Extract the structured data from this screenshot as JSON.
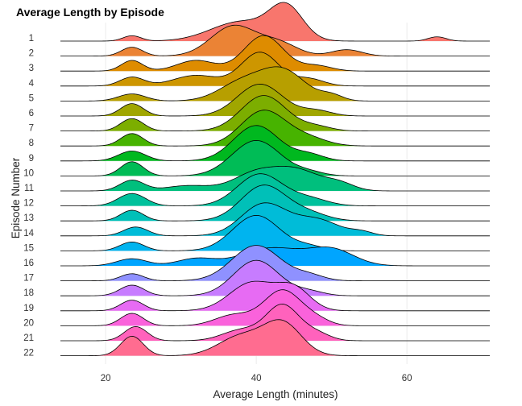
{
  "chart_data": {
    "type": "ridgeline",
    "title": "Average Length by Episode",
    "xlabel": "Average Length (minutes)",
    "ylabel": "Episode Number",
    "xlim": [
      14,
      71
    ],
    "xticks": [
      20,
      40,
      60
    ],
    "grid": true,
    "series": [
      {
        "name": "1",
        "color": "#F8766D",
        "peaks": [
          [
            23.5,
            1.2,
            0.15
          ],
          [
            38,
            4,
            0.55
          ],
          [
            44,
            2.2,
            0.9
          ],
          [
            64,
            1.2,
            0.12
          ]
        ]
      },
      {
        "name": "2",
        "color": "#EB8335",
        "peaks": [
          [
            23.5,
            1.4,
            0.25
          ],
          [
            37,
            3,
            0.85
          ],
          [
            43,
            2.5,
            0.35
          ],
          [
            52,
            2,
            0.18
          ]
        ]
      },
      {
        "name": "3",
        "color": "#DE8C00",
        "peaks": [
          [
            23.5,
            1.4,
            0.3
          ],
          [
            32,
            2.5,
            0.3
          ],
          [
            41,
            2.6,
            1.0
          ],
          [
            48,
            2,
            0.15
          ]
        ]
      },
      {
        "name": "4",
        "color": "#CD9600",
        "peaks": [
          [
            23.5,
            1.6,
            0.25
          ],
          [
            32,
            3,
            0.3
          ],
          [
            40.5,
            2.5,
            0.95
          ],
          [
            47,
            2,
            0.2
          ]
        ]
      },
      {
        "name": "5",
        "color": "#B79F00",
        "peaks": [
          [
            23.5,
            1.8,
            0.2
          ],
          [
            38,
            3,
            0.5
          ],
          [
            43.5,
            3,
            0.85
          ],
          [
            50,
            1.5,
            0.15
          ]
        ]
      },
      {
        "name": "6",
        "color": "#A0A600",
        "peaks": [
          [
            23.5,
            1.5,
            0.35
          ],
          [
            40.5,
            3,
            0.9
          ],
          [
            48,
            2,
            0.15
          ]
        ]
      },
      {
        "name": "7",
        "color": "#7CAE00",
        "peaks": [
          [
            23.5,
            1.5,
            0.35
          ],
          [
            41,
            3,
            1.0
          ],
          [
            48,
            2,
            0.12
          ]
        ]
      },
      {
        "name": "8",
        "color": "#47B300",
        "peaks": [
          [
            23.5,
            1.5,
            0.35
          ],
          [
            41,
            3,
            1.0
          ],
          [
            47,
            2.5,
            0.2
          ]
        ]
      },
      {
        "name": "9",
        "color": "#00B81F",
        "peaks": [
          [
            23.5,
            1.8,
            0.28
          ],
          [
            40,
            3,
            1.0
          ],
          [
            47,
            2,
            0.18
          ]
        ]
      },
      {
        "name": "10",
        "color": "#00BC56",
        "peaks": [
          [
            23.5,
            1.5,
            0.4
          ],
          [
            40,
            3.2,
            1.0
          ],
          [
            47,
            2,
            0.1
          ]
        ]
      },
      {
        "name": "11",
        "color": "#00BF7D",
        "peaks": [
          [
            23.5,
            1.6,
            0.3
          ],
          [
            31,
            3,
            0.15
          ],
          [
            40,
            3,
            0.5
          ],
          [
            45.5,
            3,
            0.55
          ],
          [
            51,
            2,
            0.2
          ]
        ]
      },
      {
        "name": "12",
        "color": "#00C19C",
        "peaks": [
          [
            23.5,
            1.8,
            0.35
          ],
          [
            40.5,
            3,
            0.9
          ],
          [
            47,
            2.5,
            0.2
          ]
        ]
      },
      {
        "name": "13",
        "color": "#00C0B8",
        "peaks": [
          [
            23.5,
            1.5,
            0.3
          ],
          [
            41,
            3,
            1.0
          ],
          [
            47,
            2.5,
            0.2
          ]
        ]
      },
      {
        "name": "14",
        "color": "#00BCD8",
        "peaks": [
          [
            24,
            1.6,
            0.25
          ],
          [
            41,
            3,
            0.9
          ],
          [
            48,
            3,
            0.45
          ],
          [
            54,
            1.5,
            0.1
          ]
        ]
      },
      {
        "name": "15",
        "color": "#00B4EF",
        "peaks": [
          [
            23.5,
            1.6,
            0.25
          ],
          [
            40,
            3.1,
            1.0
          ],
          [
            47,
            2,
            0.12
          ]
        ]
      },
      {
        "name": "16",
        "color": "#00A5FF",
        "peaks": [
          [
            23.5,
            2,
            0.2
          ],
          [
            32,
            2.5,
            0.2
          ],
          [
            42,
            4,
            0.5
          ],
          [
            50,
            3,
            0.45
          ]
        ]
      },
      {
        "name": "17",
        "color": "#8F91FF",
        "peaks": [
          [
            23.5,
            1.5,
            0.2
          ],
          [
            40,
            3.2,
            1.0
          ],
          [
            47,
            2,
            0.15
          ]
        ]
      },
      {
        "name": "18",
        "color": "#C77CFF",
        "peaks": [
          [
            23.5,
            1.6,
            0.3
          ],
          [
            40,
            3,
            1.0
          ],
          [
            47,
            2,
            0.12
          ]
        ]
      },
      {
        "name": "19",
        "color": "#E76BF3",
        "peaks": [
          [
            23.5,
            1.5,
            0.3
          ],
          [
            39.5,
            3,
            0.8
          ],
          [
            45,
            2.2,
            0.6
          ]
        ]
      },
      {
        "name": "20",
        "color": "#FA62DB",
        "peaks": [
          [
            23.5,
            1.5,
            0.35
          ],
          [
            37,
            2.5,
            0.3
          ],
          [
            43.5,
            2.5,
            1.0
          ],
          [
            48,
            1.8,
            0.15
          ]
        ]
      },
      {
        "name": "21",
        "color": "#FF62BC",
        "peaks": [
          [
            24,
            1.5,
            0.4
          ],
          [
            38,
            2.5,
            0.3
          ],
          [
            43.5,
            2.2,
            1.0
          ],
          [
            48,
            1.8,
            0.2
          ]
        ]
      },
      {
        "name": "22",
        "color": "#FF6C90",
        "peaks": [
          [
            23.5,
            1.5,
            0.55
          ],
          [
            38,
            3,
            0.55
          ],
          [
            43.5,
            2.5,
            0.9
          ]
        ]
      }
    ]
  }
}
